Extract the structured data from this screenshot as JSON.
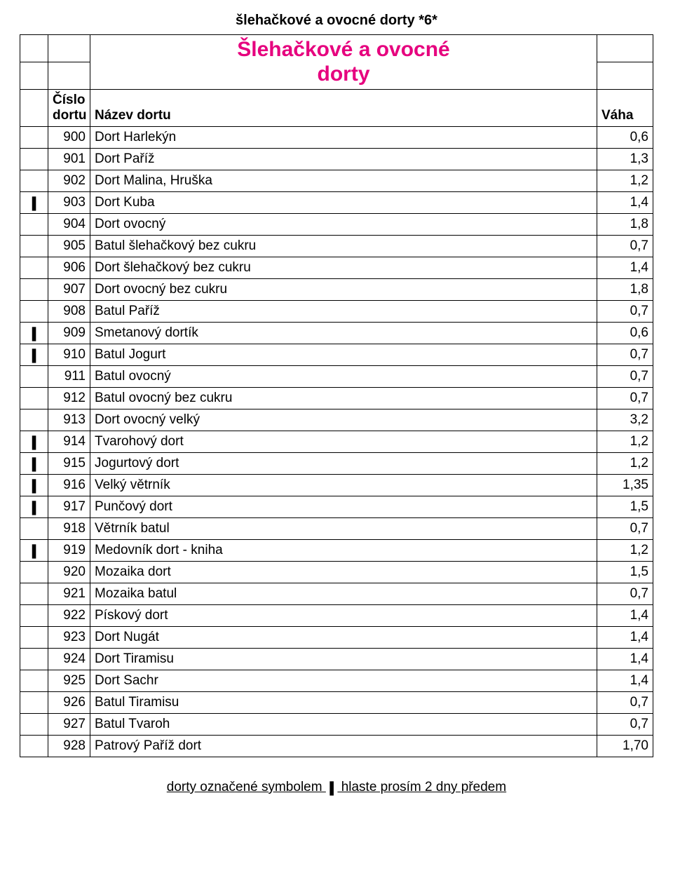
{
  "doc_header": "šlehačkové a ovocné dorty  *6*",
  "section_title_line1": "Šlehačkové a ovocné",
  "section_title_line2": "dorty",
  "header": {
    "col_num_line1": "Číslo",
    "col_num_line2": "dortu",
    "col_name": "Název dortu",
    "col_val": "Váha"
  },
  "mark_glyph": "❚",
  "rows": [
    {
      "mark": false,
      "num": "900",
      "name": "Dort Harlekýn",
      "val": "0,6"
    },
    {
      "mark": false,
      "num": "901",
      "name": "Dort Paříž",
      "val": "1,3"
    },
    {
      "mark": false,
      "num": "902",
      "name": "Dort Malina, Hruška",
      "val": "1,2"
    },
    {
      "mark": true,
      "num": "903",
      "name": "Dort Kuba",
      "val": "1,4"
    },
    {
      "mark": false,
      "num": "904",
      "name": "Dort ovocný",
      "val": "1,8"
    },
    {
      "mark": false,
      "num": "905",
      "name": "Batul šlehačkový bez cukru",
      "val": "0,7"
    },
    {
      "mark": false,
      "num": "906",
      "name": "Dort šlehačkový bez cukru",
      "val": "1,4"
    },
    {
      "mark": false,
      "num": "907",
      "name": "Dort ovocný bez cukru",
      "val": "1,8"
    },
    {
      "mark": false,
      "num": "908",
      "name": "Batul Paříž",
      "val": "0,7"
    },
    {
      "mark": true,
      "num": "909",
      "name": "Smetanový dortík",
      "val": "0,6"
    },
    {
      "mark": true,
      "num": "910",
      "name": "Batul Jogurt",
      "val": "0,7"
    },
    {
      "mark": false,
      "num": "911",
      "name": "Batul ovocný",
      "val": "0,7"
    },
    {
      "mark": false,
      "num": "912",
      "name": "Batul ovocný bez cukru",
      "val": "0,7"
    },
    {
      "mark": false,
      "num": "913",
      "name": "Dort ovocný velký",
      "val": "3,2"
    },
    {
      "mark": true,
      "num": "914",
      "name": "Tvarohový dort",
      "val": "1,2"
    },
    {
      "mark": true,
      "num": "915",
      "name": "Jogurtový dort",
      "val": "1,2"
    },
    {
      "mark": true,
      "num": "916",
      "name": "Velký větrník",
      "val": "1,35"
    },
    {
      "mark": true,
      "num": "917",
      "name": "Punčový dort",
      "val": "1,5"
    },
    {
      "mark": false,
      "num": "918",
      "name": "Větrník batul",
      "val": "0,7"
    },
    {
      "mark": true,
      "num": "919",
      "name": "Medovník dort - kniha",
      "val": "1,2"
    },
    {
      "mark": false,
      "num": "920",
      "name": "Mozaika dort",
      "val": "1,5"
    },
    {
      "mark": false,
      "num": "921",
      "name": "Mozaika batul",
      "val": "0,7"
    },
    {
      "mark": false,
      "num": "922",
      "name": "Pískový dort",
      "val": "1,4"
    },
    {
      "mark": false,
      "num": "923",
      "name": "Dort Nugát",
      "val": "1,4"
    },
    {
      "mark": false,
      "num": "924",
      "name": "Dort Tiramisu",
      "val": "1,4"
    },
    {
      "mark": false,
      "num": "925",
      "name": "Dort Sachr",
      "val": "1,4"
    },
    {
      "mark": false,
      "num": "926",
      "name": "Batul Tiramisu",
      "val": "0,7"
    },
    {
      "mark": false,
      "num": "927",
      "name": "Batul Tvaroh",
      "val": "0,7"
    },
    {
      "mark": false,
      "num": "928",
      "name": "Patrový Paříž dort",
      "val": "1,70"
    }
  ],
  "footnote_before": "dorty označené symbolem ",
  "footnote_after": " hlaste prosím 2 dny předem",
  "colors": {
    "title": "#e6007e",
    "text": "#000000",
    "border": "#000000",
    "background": "#ffffff"
  }
}
